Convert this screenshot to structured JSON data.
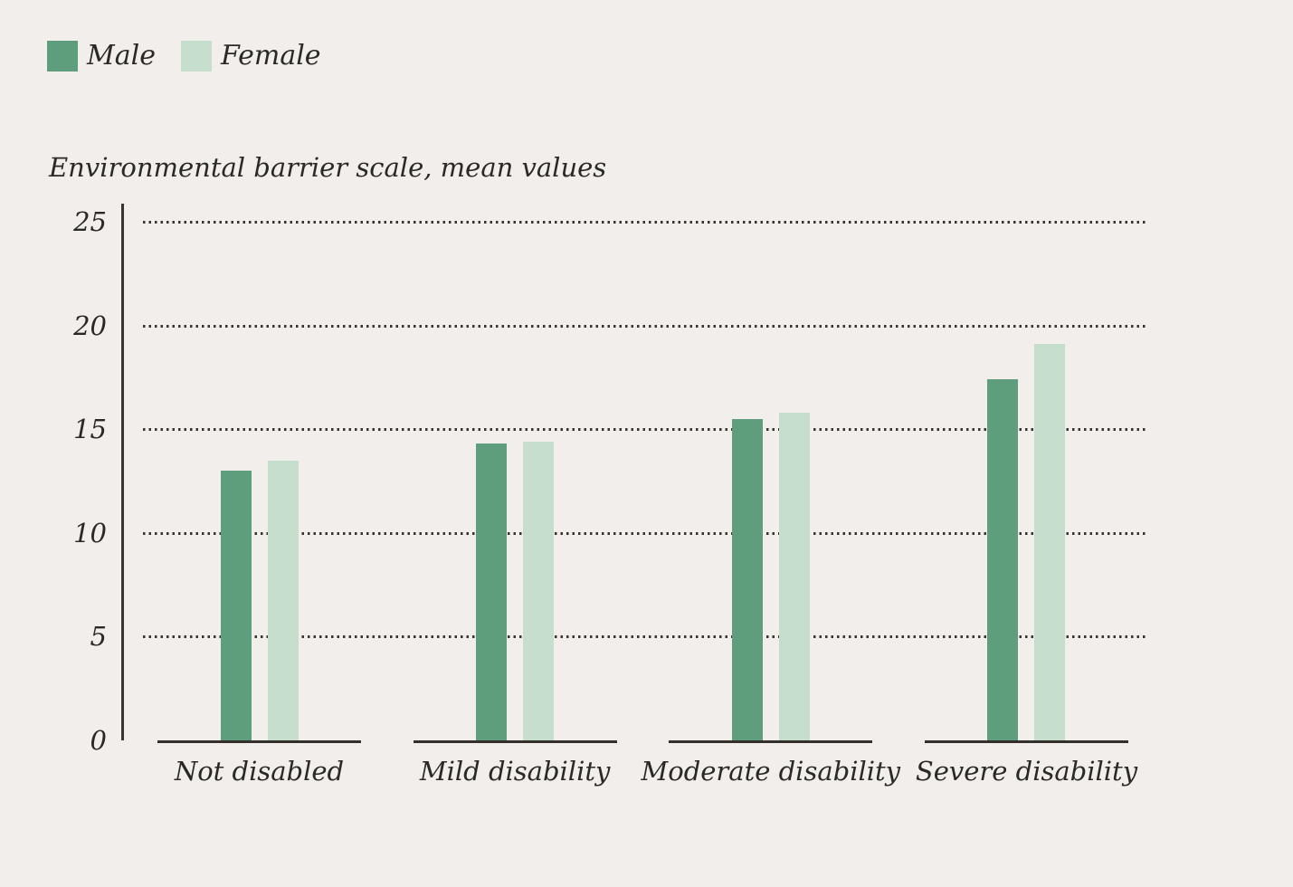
{
  "legend": {
    "position": "top-left"
  },
  "chart_data": {
    "type": "bar",
    "title": "Environmental barrier scale, mean values",
    "categories": [
      "Not disabled",
      "Mild disability",
      "Moderate disability",
      "Severe disability"
    ],
    "series": [
      {
        "name": "Male",
        "color": "#5f9e7c",
        "values": [
          13.0,
          14.3,
          15.5,
          17.4
        ]
      },
      {
        "name": "Female",
        "color": "#c6dfcd",
        "values": [
          13.5,
          14.4,
          15.8,
          19.1
        ]
      }
    ],
    "xlabel": "",
    "ylabel": "Environmental barrier scale, mean values",
    "ylim": [
      0,
      25
    ],
    "yticks": [
      0,
      5,
      10,
      15,
      20,
      25
    ],
    "grid": "horizontal dotted lines at y=5,10,15,20,25",
    "legend_position": "top-left",
    "colors": {
      "background": "#f1eeeb",
      "axis": "#38352f",
      "text": "#2b2924"
    }
  }
}
